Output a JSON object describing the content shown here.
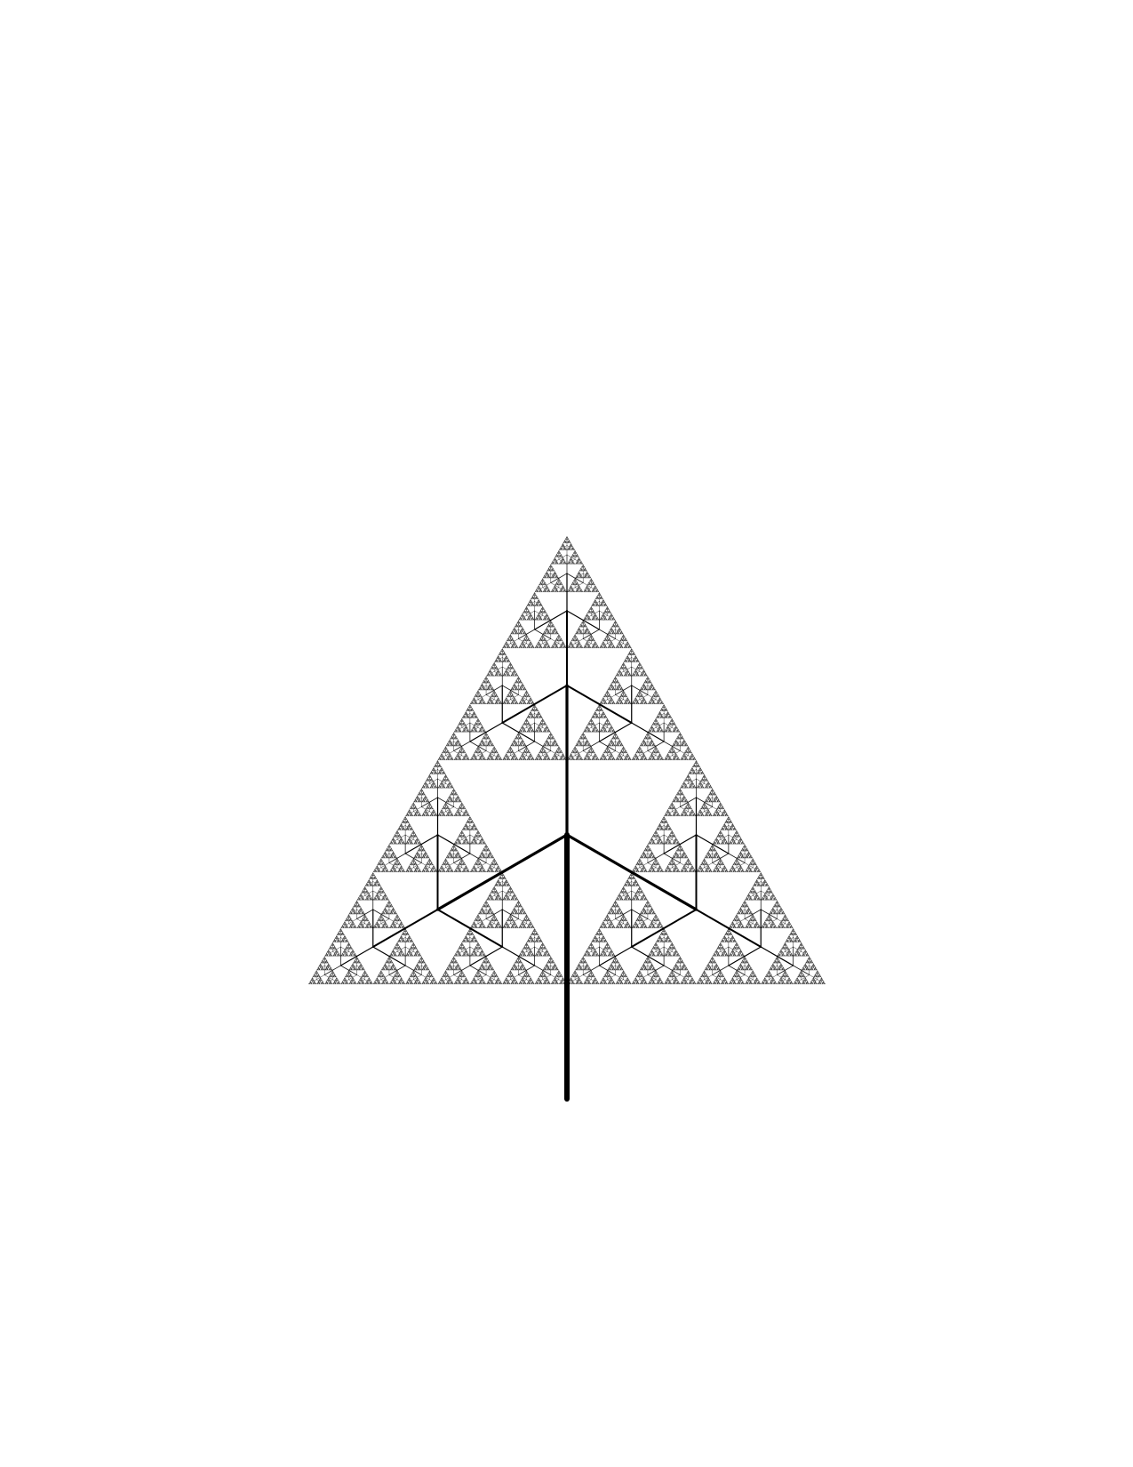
{
  "figure": {
    "kind": "fractal-tree",
    "shape": "equilateral-triangle",
    "branching": 3,
    "depth": 10,
    "background_color": "#ffffff",
    "stroke_color": "#000000",
    "text_labels": []
  }
}
